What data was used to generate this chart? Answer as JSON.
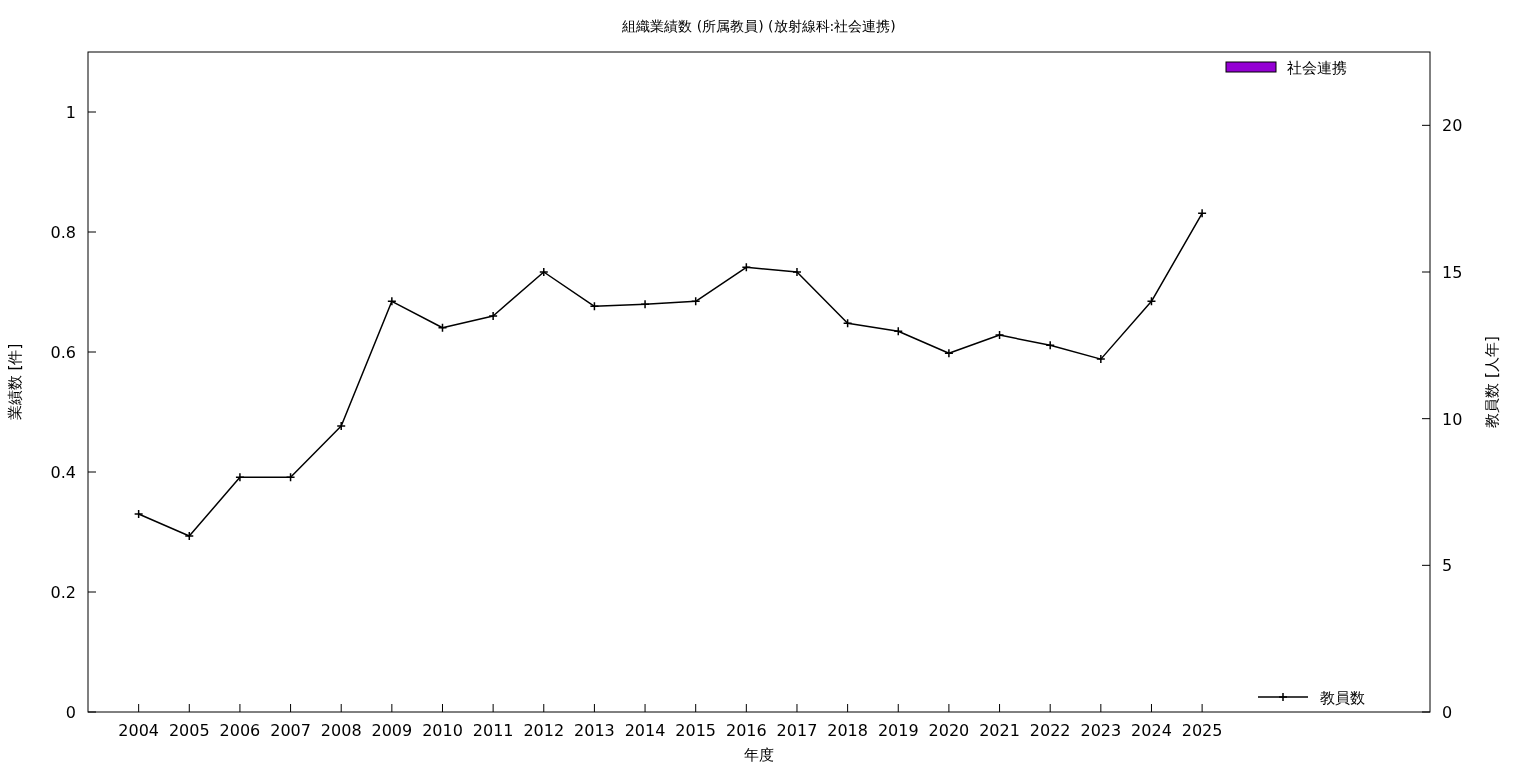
{
  "chart_data": {
    "type": "line",
    "title": "組織業績数 (所属教員) (放射線科:社会連携)",
    "xlabel": "年度",
    "ylabel": "業績数 [件]",
    "y2label": "教員数 [人年]",
    "x": [
      2004,
      2005,
      2006,
      2007,
      2008,
      2009,
      2010,
      2011,
      2012,
      2013,
      2014,
      2015,
      2016,
      2017,
      2018,
      2019,
      2020,
      2021,
      2022,
      2023,
      2024,
      2025
    ],
    "xlim": [
      2003,
      2029.5
    ],
    "xticks": [
      2004,
      2005,
      2006,
      2007,
      2008,
      2009,
      2010,
      2011,
      2012,
      2013,
      2014,
      2015,
      2016,
      2017,
      2018,
      2019,
      2020,
      2021,
      2022,
      2023,
      2024,
      2025
    ],
    "ylim": [
      0,
      1.1
    ],
    "yticks": [
      0,
      0.2,
      0.4,
      0.6,
      0.8,
      1
    ],
    "y2lim": [
      0,
      22.5
    ],
    "y2ticks": [
      0,
      5,
      10,
      15,
      20
    ],
    "series": [
      {
        "name": "社会連携",
        "type": "bar",
        "color": "#9400d3",
        "values": [
          0,
          0,
          0,
          0,
          0,
          0,
          0,
          0,
          0,
          0,
          0,
          0,
          0,
          0,
          0,
          0,
          0,
          0,
          0,
          0,
          0,
          0
        ]
      },
      {
        "name": "教員数",
        "axis": "y2",
        "color": "#000000",
        "marker": "cross",
        "values": [
          6.75,
          6,
          8,
          8,
          9.75,
          14,
          13.1,
          13.5,
          15,
          13.83,
          13.9,
          14,
          15.16,
          15,
          13.25,
          12.98,
          12.23,
          12.85,
          12.5,
          12.03,
          14,
          17
        ]
      }
    ],
    "legend": "right",
    "grid": false
  }
}
